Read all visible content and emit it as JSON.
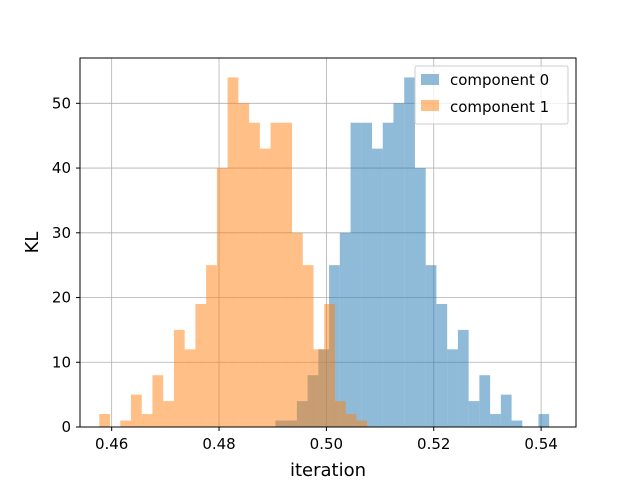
{
  "chart_data": {
    "type": "histogram",
    "title": "",
    "xlabel": "iteration",
    "ylabel": "KL",
    "xlim": [
      0.4541,
      0.5465
    ],
    "ylim": [
      0,
      57
    ],
    "xticks": [
      0.46,
      0.48,
      0.5,
      0.52,
      0.54
    ],
    "xtick_labels": [
      "0.46",
      "0.48",
      "0.50",
      "0.52",
      "0.54"
    ],
    "yticks": [
      0,
      10,
      20,
      30,
      40,
      50
    ],
    "ytick_labels": [
      "0",
      "10",
      "20",
      "30",
      "40",
      "50"
    ],
    "grid": true,
    "legend_position": "top-right",
    "series": [
      {
        "name": "component 0",
        "color": "#1f77b4",
        "opacity": 0.5,
        "bins": [
          [
            0.4905,
            0.4925,
            1
          ],
          [
            0.4925,
            0.4945,
            1
          ],
          [
            0.4945,
            0.4965,
            4
          ],
          [
            0.4965,
            0.4985,
            8
          ],
          [
            0.4985,
            0.5005,
            12
          ],
          [
            0.5005,
            0.5025,
            25
          ],
          [
            0.5025,
            0.5045,
            30
          ],
          [
            0.5045,
            0.5065,
            47
          ],
          [
            0.5065,
            0.5085,
            47
          ],
          [
            0.5085,
            0.5105,
            43
          ],
          [
            0.5105,
            0.5125,
            47
          ],
          [
            0.5125,
            0.5145,
            50
          ],
          [
            0.5145,
            0.5165,
            54
          ],
          [
            0.5165,
            0.5185,
            40
          ],
          [
            0.5185,
            0.5205,
            25
          ],
          [
            0.5205,
            0.5225,
            19
          ],
          [
            0.5225,
            0.5245,
            12
          ],
          [
            0.5245,
            0.5265,
            15
          ],
          [
            0.5265,
            0.5285,
            4
          ],
          [
            0.5285,
            0.5305,
            8
          ],
          [
            0.5305,
            0.5325,
            2
          ],
          [
            0.5325,
            0.5345,
            5
          ],
          [
            0.5345,
            0.5365,
            1
          ],
          [
            0.5395,
            0.5415,
            2
          ]
        ]
      },
      {
        "name": "component 1",
        "color": "#ff7f0e",
        "opacity": 0.5,
        "bins": [
          [
            0.4577,
            0.4597,
            2
          ],
          [
            0.4616,
            0.4636,
            1
          ],
          [
            0.4636,
            0.4656,
            5
          ],
          [
            0.4656,
            0.4676,
            2
          ],
          [
            0.4676,
            0.4696,
            8
          ],
          [
            0.4696,
            0.4716,
            4
          ],
          [
            0.4716,
            0.4736,
            15
          ],
          [
            0.4736,
            0.4756,
            12
          ],
          [
            0.4756,
            0.4776,
            19
          ],
          [
            0.4776,
            0.4796,
            25
          ],
          [
            0.4796,
            0.4816,
            40
          ],
          [
            0.4816,
            0.4836,
            54
          ],
          [
            0.4836,
            0.4856,
            50
          ],
          [
            0.4856,
            0.4876,
            47
          ],
          [
            0.4876,
            0.4896,
            43
          ],
          [
            0.4896,
            0.4916,
            47
          ],
          [
            0.4916,
            0.4936,
            47
          ],
          [
            0.4936,
            0.4956,
            30
          ],
          [
            0.4956,
            0.4976,
            25
          ],
          [
            0.4976,
            0.4996,
            12
          ],
          [
            0.4996,
            0.5016,
            19
          ],
          [
            0.5016,
            0.5036,
            4
          ],
          [
            0.5036,
            0.5056,
            2
          ],
          [
            0.5056,
            0.5076,
            1
          ]
        ]
      }
    ]
  }
}
